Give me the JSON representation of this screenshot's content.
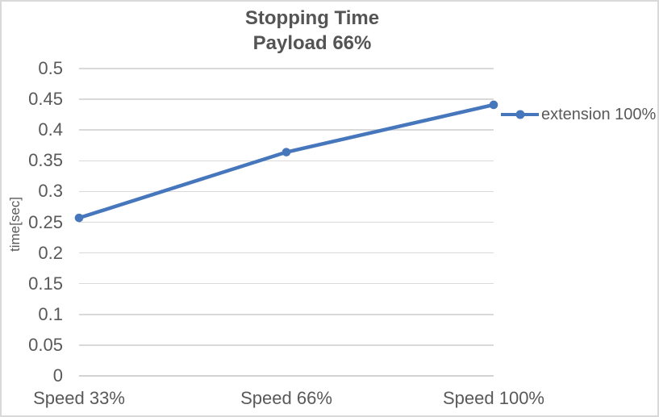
{
  "chart_title": {
    "line1": "Stopping Time",
    "line2": "Payload 66%"
  },
  "y_axis": {
    "title": "time[sec]",
    "min": 0,
    "max": 0.5,
    "tick_labels": [
      "0",
      "0.05",
      "0.1",
      "0.15",
      "0.2",
      "0.25",
      "0.3",
      "0.35",
      "0.4",
      "0.45",
      "0.5"
    ]
  },
  "x_axis": {
    "categories": [
      "Speed 33%",
      "Speed 66%",
      "Speed 100%"
    ]
  },
  "legend": {
    "entries": [
      {
        "label": "extension 100%"
      }
    ]
  },
  "chart_data": {
    "type": "line",
    "title": "Stopping Time Payload 66%",
    "categories": [
      "Speed 33%",
      "Speed 66%",
      "Speed 100%"
    ],
    "series": [
      {
        "name": "extension 100%",
        "values": [
          0.257,
          0.364,
          0.441
        ],
        "color": "#4676BB",
        "marker": "circle"
      }
    ],
    "xlabel": "",
    "ylabel": "time[sec]",
    "ylim": [
      0,
      0.5
    ],
    "ytick_interval": 0.05,
    "grid": true,
    "legend_position": "right"
  },
  "colors": {
    "series": "#4676BB",
    "gridline": "#D9D9D9",
    "axis_line": "#D3D3D3",
    "text": "#595959",
    "title_text": "#545454",
    "border": "#D9D9D9",
    "background": "#FFFFFF"
  }
}
